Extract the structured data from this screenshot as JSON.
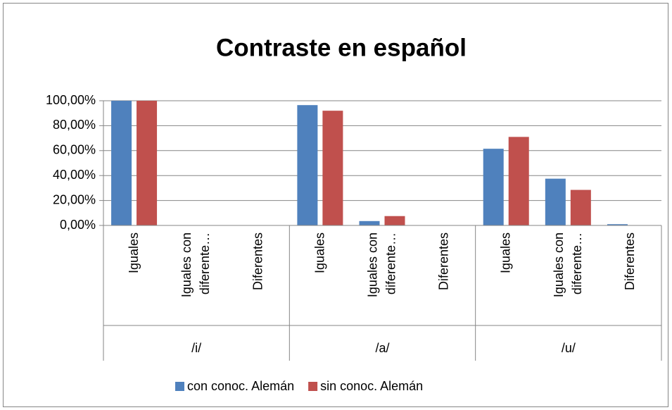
{
  "chart_data": {
    "type": "bar",
    "title": "Contraste en español",
    "groups": [
      "/i/",
      "/a/",
      "/u/"
    ],
    "categories": [
      "Iguales",
      "Iguales con diferente…",
      "Diferentes",
      "Iguales",
      "Iguales con diferente…",
      "Diferentes",
      "Iguales",
      "Iguales con diferente…",
      "Diferentes"
    ],
    "series": [
      {
        "name": "con conoc. Alemán",
        "color": "#4f81bd",
        "values": [
          100,
          0,
          0,
          96.5,
          3.5,
          0,
          61.5,
          37.5,
          1
        ]
      },
      {
        "name": "sin conoc. Alemán",
        "color": "#c0504d",
        "values": [
          100,
          0,
          0,
          92,
          7.5,
          0,
          71,
          28.5,
          0
        ]
      }
    ],
    "ylim": [
      0,
      100
    ],
    "yticks": [
      {
        "value": 0,
        "label": "0,00%"
      },
      {
        "value": 20,
        "label": "20,00%"
      },
      {
        "value": 40,
        "label": "40,00%"
      },
      {
        "value": 60,
        "label": "60,00%"
      },
      {
        "value": 80,
        "label": "80,00%"
      },
      {
        "value": 100,
        "label": "100,00%"
      }
    ],
    "grid": true,
    "legend": "bottom"
  }
}
